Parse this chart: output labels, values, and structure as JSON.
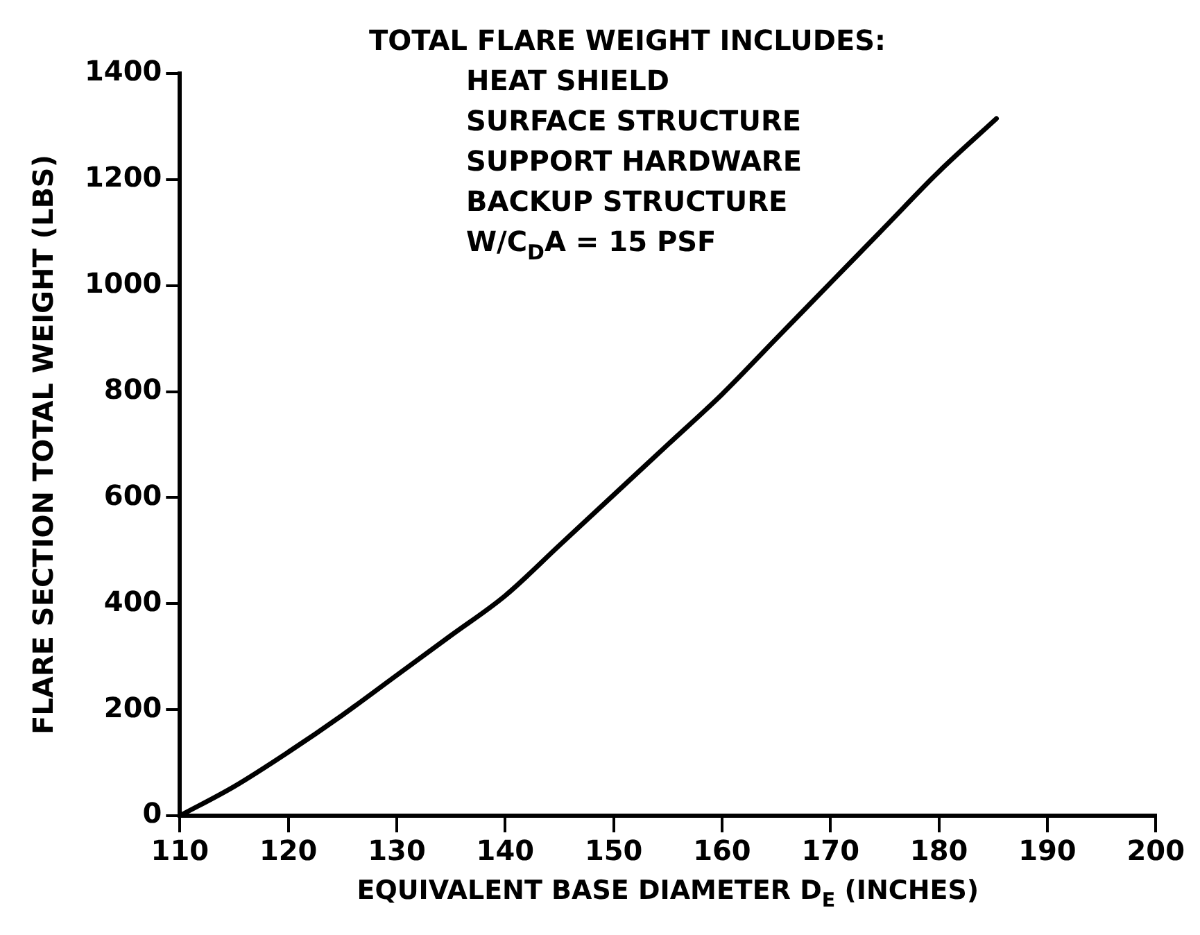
{
  "chart_data": {
    "type": "line",
    "xlabel": "EQUIVALENT BASE DIAMETER D$_{E}$ (INCHES)",
    "ylabel": "FLARE SECTION TOTAL WEIGHT (LBS)",
    "annotations": [
      "TOTAL FLARE WEIGHT INCLUDES:",
      "HEAT SHIELD",
      "SURFACE STRUCTURE",
      "SUPPORT HARDWARE",
      "BACKUP STRUCTURE",
      "W/C$_{D}$A = 15 PSF"
    ],
    "series": [
      {
        "color": "#000000",
        "x": [
          110,
          115,
          120,
          125,
          130,
          135,
          140,
          145,
          150,
          155,
          160,
          165,
          170,
          175,
          180,
          185.3
        ],
        "values": [
          0,
          55,
          120,
          190,
          265,
          340,
          415,
          510,
          605,
          700,
          795,
          900,
          1005,
          1110,
          1215,
          1315
        ]
      }
    ],
    "xlim": [
      110,
      200
    ],
    "xticks": [
      110,
      120,
      130,
      140,
      150,
      160,
      170,
      180,
      190,
      200
    ],
    "ylim": [
      0,
      1400
    ],
    "yticks": [
      0,
      200,
      400,
      600,
      800,
      1000,
      1200,
      1400
    ],
    "grid": false,
    "legend": false,
    "marker": "none",
    "line_style": "solid"
  }
}
